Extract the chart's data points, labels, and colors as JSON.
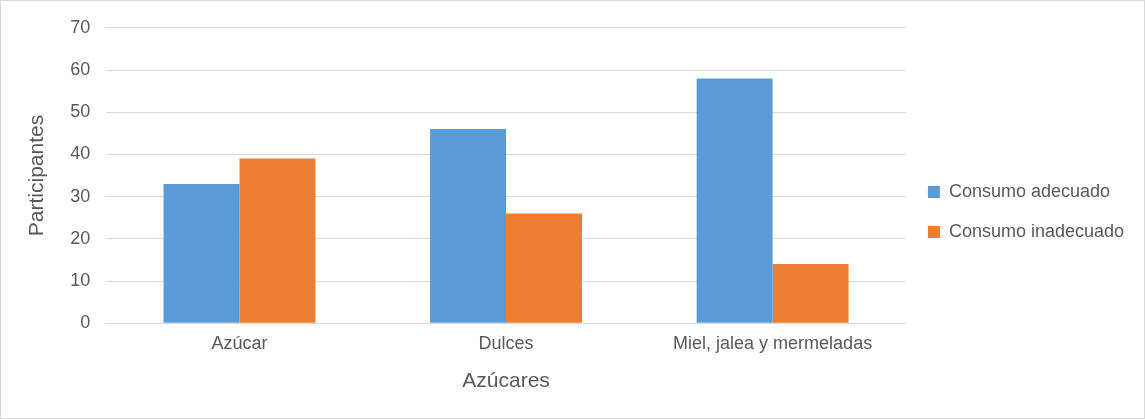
{
  "chart_data": {
    "type": "bar",
    "xlabel": "Azúcares",
    "ylabel": "Participantes",
    "categories": [
      "Azúcar",
      "Dulces",
      "Miel, jalea y mermeladas"
    ],
    "series": [
      {
        "name": "Consumo adecuado",
        "color": "#5b9bd5",
        "values": [
          33,
          46,
          58
        ]
      },
      {
        "name": "Consumo inadecuado",
        "color": "#ed7d31",
        "values": [
          39,
          26,
          14
        ]
      }
    ],
    "ylim": [
      0,
      70
    ],
    "yticks": [
      0,
      10,
      20,
      30,
      40,
      50,
      60,
      70
    ],
    "grid": "y",
    "legend": "right"
  }
}
